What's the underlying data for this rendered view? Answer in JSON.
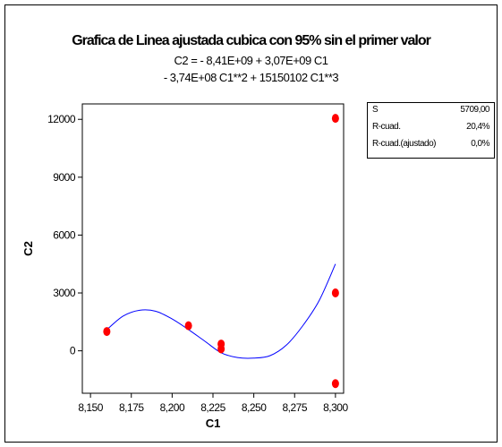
{
  "chart_data": {
    "type": "scatter",
    "title": "Grafica de Linea ajustada cubica con 95% sin el primer valor",
    "subtitle_lines": [
      "C2 =  - 8,41E+09 + 3,07E+09 C1",
      "- 3,74E+08 C1**2 + 15150102 C1**3"
    ],
    "xlabel": "C1",
    "ylabel": "C2",
    "xlim": [
      8.145,
      8.305
    ],
    "ylim": [
      -2200,
      12800
    ],
    "x_ticks": [
      8.15,
      8.175,
      8.2,
      8.225,
      8.25,
      8.275,
      8.3
    ],
    "x_tick_labels": [
      "8,150",
      "8,175",
      "8,200",
      "8,225",
      "8,250",
      "8,275",
      "8,300"
    ],
    "y_ticks": [
      0,
      3000,
      6000,
      9000,
      12000
    ],
    "y_tick_labels": [
      "0",
      "3000",
      "6000",
      "9000",
      "12000"
    ],
    "points": {
      "x": [
        8.16,
        8.21,
        8.23,
        8.23,
        8.3,
        8.3,
        8.3
      ],
      "y": [
        1000,
        1300,
        350,
        100,
        12050,
        3000,
        -1700
      ]
    },
    "fit_curve": {
      "x": [
        8.16,
        8.17,
        8.18,
        8.19,
        8.2,
        8.21,
        8.22,
        8.23,
        8.24,
        8.25,
        8.26,
        8.27,
        8.28,
        8.29,
        8.3
      ],
      "y": [
        1100,
        1800,
        2100,
        2050,
        1650,
        1100,
        500,
        -100,
        -350,
        -380,
        -250,
        300,
        1300,
        2600,
        4500
      ]
    },
    "point_color": "#ff0000",
    "curve_color": "#0000ff",
    "grid": false,
    "stats_table": {
      "rows": [
        {
          "label": "S",
          "value": "5709,00"
        },
        {
          "label": "R-cuad.",
          "value": "20,4%"
        },
        {
          "label": "R-cuad.(ajustado)",
          "value": "0,0%"
        }
      ],
      "position": "top-right"
    }
  }
}
